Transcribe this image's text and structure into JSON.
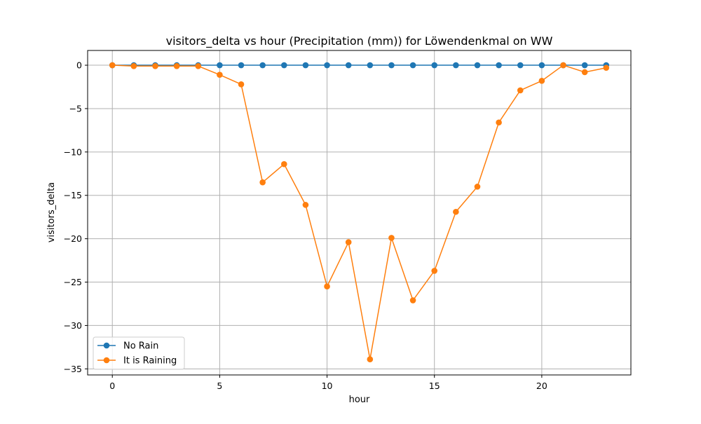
{
  "chart_data": {
    "type": "line",
    "title": "visitors_delta vs hour (Precipitation (mm)) for Löwendenkmal on WW",
    "xlabel": "hour",
    "ylabel": "visitors_delta",
    "xlim": [
      -1.15,
      24.15
    ],
    "ylim": [
      -35.7,
      1.7
    ],
    "x_ticks": [
      0,
      5,
      10,
      15,
      20
    ],
    "y_ticks": [
      0,
      -5,
      -10,
      -15,
      -20,
      -25,
      -30,
      -35
    ],
    "grid": true,
    "legend_position": "lower-left",
    "x": [
      0,
      1,
      2,
      3,
      4,
      5,
      6,
      7,
      8,
      9,
      10,
      11,
      12,
      13,
      14,
      15,
      16,
      17,
      18,
      19,
      20,
      21,
      22,
      23
    ],
    "series": [
      {
        "name": "No Rain",
        "color": "#1f77b4",
        "values": [
          0,
          0,
          0,
          0,
          0,
          0,
          0,
          0,
          0,
          0,
          0,
          0,
          0,
          0,
          0,
          0,
          0,
          0,
          0,
          0,
          0,
          0,
          0,
          0
        ]
      },
      {
        "name": "It is Raining",
        "color": "#ff7f0e",
        "values": [
          0,
          -0.1,
          -0.1,
          -0.1,
          -0.1,
          -1.1,
          -2.2,
          -13.5,
          -11.4,
          -16.1,
          -25.5,
          -20.4,
          -33.9,
          -19.9,
          -27.1,
          -23.7,
          -16.9,
          -14.0,
          -6.6,
          -2.9,
          -1.8,
          0,
          -0.8,
          -0.3
        ]
      }
    ]
  }
}
